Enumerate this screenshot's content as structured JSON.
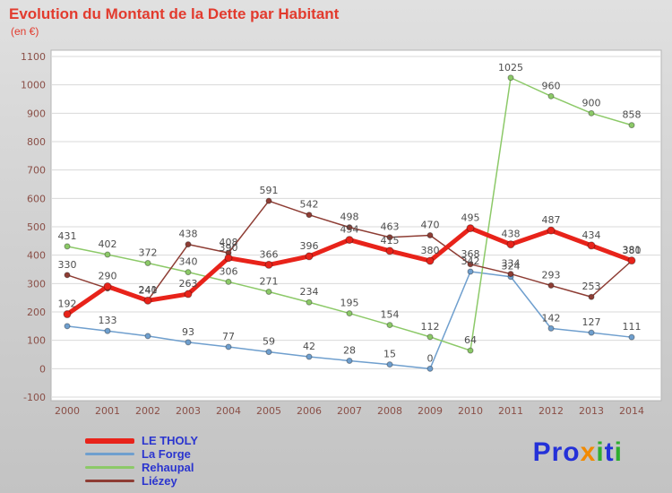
{
  "title": "Evolution du Montant de la Dette par Habitant",
  "subtitle": "(en €)",
  "logo": {
    "letters": [
      {
        "ch": "P",
        "color": "#2431d8"
      },
      {
        "ch": "r",
        "color": "#2431d8"
      },
      {
        "ch": "o",
        "color": "#2431d8"
      },
      {
        "ch": "x",
        "color": "#f28a00"
      },
      {
        "ch": "i",
        "color": "#2fae2f"
      },
      {
        "ch": "t",
        "color": "#2431d8"
      },
      {
        "ch": "i",
        "color": "#2fae2f"
      }
    ]
  },
  "chart_data": {
    "type": "line",
    "title": "Evolution du Montant de la Dette par Habitant",
    "ylabel": "en €",
    "x": [
      2000,
      2001,
      2002,
      2003,
      2004,
      2005,
      2006,
      2007,
      2008,
      2009,
      2010,
      2011,
      2012,
      2013,
      2014
    ],
    "ylim": [
      -100,
      1100
    ],
    "ytick_step": 100,
    "grid": true,
    "legend_position": "bottom-left",
    "series": [
      {
        "name": "LE THOLY",
        "color": "#e8231a",
        "width": 5,
        "marker_radius": 4,
        "values": [
          192,
          290,
          240,
          263,
          390,
          366,
          396,
          454,
          415,
          380,
          495,
          438,
          487,
          434,
          381
        ],
        "labels": [
          "192",
          "290",
          "240",
          "263",
          "390",
          "366",
          "396",
          "454",
          "415",
          "380",
          "495",
          "438",
          "487",
          "434",
          "381"
        ]
      },
      {
        "name": "La Forge",
        "color": "#6f9fce",
        "width": 1.5,
        "marker_radius": 3,
        "values": [
          150,
          133,
          115,
          93,
          77,
          59,
          42,
          28,
          15,
          0,
          342,
          324,
          142,
          127,
          111
        ],
        "labels": [
          null,
          "133",
          null,
          "93",
          "77",
          "59",
          "42",
          "28",
          "15",
          "0",
          "342",
          "324",
          "142",
          "127",
          "111"
        ]
      },
      {
        "name": "Rehaupal",
        "color": "#8cc968",
        "width": 1.5,
        "marker_radius": 3,
        "values": [
          431,
          402,
          372,
          340,
          306,
          271,
          234,
          195,
          154,
          112,
          64,
          1025,
          960,
          900,
          858
        ],
        "labels": [
          "431",
          "402",
          "372",
          "340",
          "306",
          "271",
          "234",
          "195",
          "154",
          "112",
          "64",
          "1025",
          "960",
          "900",
          "858"
        ]
      },
      {
        "name": "Liézey",
        "color": "#8e3d34",
        "width": 1.5,
        "marker_radius": 3,
        "values": [
          330,
          283,
          241,
          438,
          408,
          591,
          542,
          498,
          463,
          470,
          368,
          334,
          293,
          253,
          380
        ],
        "labels": [
          "330",
          null,
          "241",
          "438",
          "408",
          "591",
          "542",
          "498",
          "463",
          "470",
          "368",
          "334",
          "293",
          "253",
          "380"
        ]
      }
    ]
  }
}
